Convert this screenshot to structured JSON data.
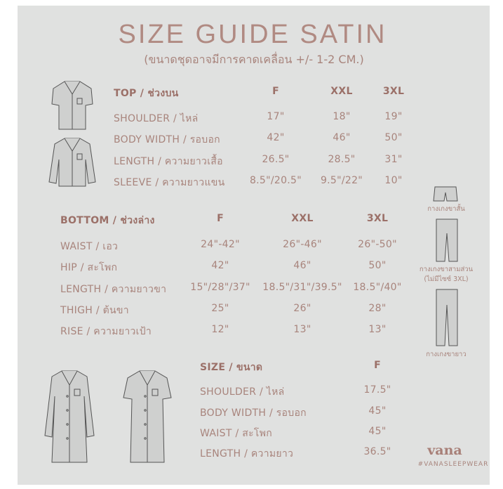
{
  "title": "SIZE GUIDE SATIN",
  "subtitle": "(ขนาดชุดอาจมีการคาดเคลื่อน +/- 1-2 CM.)",
  "top": {
    "header": "TOP / ช่วงบน",
    "sizes": [
      "F",
      "XXL",
      "3XL"
    ],
    "rows": [
      {
        "label": "SHOULDER / ไหล่",
        "values": [
          "17\"",
          "18\"",
          "19\""
        ]
      },
      {
        "label": "BODY WIDTH / รอบอก",
        "values": [
          "42\"",
          "46\"",
          "50\""
        ]
      },
      {
        "label": "LENGTH / ความยาวเสื้อ",
        "values": [
          "26.5\"",
          "28.5\"",
          "31\""
        ]
      },
      {
        "label": "SLEEVE / ความยาวแขน",
        "values": [
          "8.5\"/20.5\"",
          "9.5\"/22\"",
          "10\""
        ]
      }
    ]
  },
  "bottom": {
    "header": "BOTTOM / ช่วงล่าง",
    "sizes": [
      "F",
      "XXL",
      "3XL"
    ],
    "rows": [
      {
        "label": "WAIST / เอว",
        "values": [
          "24\"-42\"",
          "26\"-46\"",
          "26\"-50\""
        ]
      },
      {
        "label": "HIP / สะโพก",
        "values": [
          "42\"",
          "46\"",
          "50\""
        ]
      },
      {
        "label": "LENGTH / ความยาวขา",
        "values": [
          "15\"/28\"/37\"",
          "18.5\"/31\"/39.5\"",
          "18.5\"/40\""
        ]
      },
      {
        "label": "THIGH / ต้นขา",
        "values": [
          "25\"",
          "26\"",
          "28\""
        ]
      },
      {
        "label": "RISE / ความยาวเป้า",
        "values": [
          "12\"",
          "13\"",
          "13\""
        ]
      }
    ]
  },
  "pants_labels": {
    "shorts": "กางเกงขาสั้น",
    "three_quarter": "กางเกงขาสามส่วน",
    "three_quarter_note": "(ไม่มีไซซ์ 3XL)",
    "long": "กางเกงขายาว"
  },
  "dress": {
    "header": "SIZE / ขนาด",
    "sizes": [
      "F"
    ],
    "rows": [
      {
        "label": "SHOULDER / ไหล่",
        "values": [
          "17.5\""
        ]
      },
      {
        "label": "BODY WIDTH / รอบอก",
        "values": [
          "45\""
        ]
      },
      {
        "label": "WAIST / สะโพก",
        "values": [
          "45\""
        ]
      },
      {
        "label": "LENGTH / ความยาว",
        "values": [
          "36.5\""
        ]
      }
    ]
  },
  "brand": {
    "logo": "vana",
    "hashtag": "#VANASLEEPWEAR"
  },
  "colors": {
    "background": "#e0e1e0",
    "text": "#a8847c",
    "title": "#b08a82"
  }
}
